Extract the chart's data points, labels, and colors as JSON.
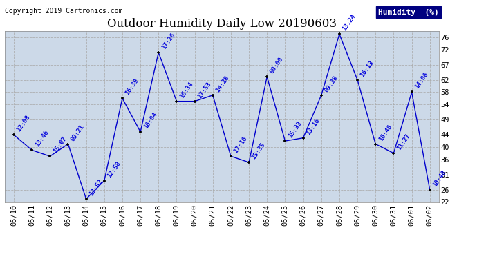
{
  "title": "Outdoor Humidity Daily Low 20190603",
  "copyright": "Copyright 2019 Cartronics.com",
  "legend_label": "Humidity  (%)",
  "dates": [
    "05/10",
    "05/11",
    "05/12",
    "05/13",
    "05/14",
    "05/15",
    "05/16",
    "05/17",
    "05/18",
    "05/19",
    "05/20",
    "05/21",
    "05/22",
    "05/23",
    "05/24",
    "05/25",
    "05/26",
    "05/27",
    "05/28",
    "05/29",
    "05/30",
    "05/31",
    "06/01",
    "06/02"
  ],
  "values": [
    44,
    39,
    37,
    41,
    23,
    29,
    56,
    45,
    71,
    55,
    55,
    57,
    37,
    35,
    63,
    42,
    43,
    57,
    77,
    62,
    41,
    38,
    58,
    26
  ],
  "labels": [
    "12:08",
    "13:46",
    "15:07",
    "09:21",
    "13:52",
    "12:58",
    "16:39",
    "16:04",
    "17:26",
    "16:34",
    "17:53",
    "14:28",
    "17:16",
    "15:35",
    "00:00",
    "15:33",
    "13:16",
    "09:38",
    "13:24",
    "16:13",
    "16:46",
    "11:27",
    "14:06",
    "10:48"
  ],
  "line_color": "#0000cc",
  "marker_color": "#000000",
  "bg_color": "#ffffff",
  "plot_bg_color": "#ccd9e8",
  "grid_color": "#aaaaaa",
  "title_color": "#000000",
  "label_color": "#0000dd",
  "legend_bg": "#000080",
  "legend_fg": "#ffffff",
  "ylim": [
    22,
    78
  ],
  "yticks": [
    22,
    26,
    31,
    36,
    40,
    44,
    49,
    54,
    58,
    62,
    67,
    72,
    76
  ],
  "title_fontsize": 12,
  "label_fontsize": 6.5,
  "tick_fontsize": 7.5,
  "copyright_fontsize": 7
}
